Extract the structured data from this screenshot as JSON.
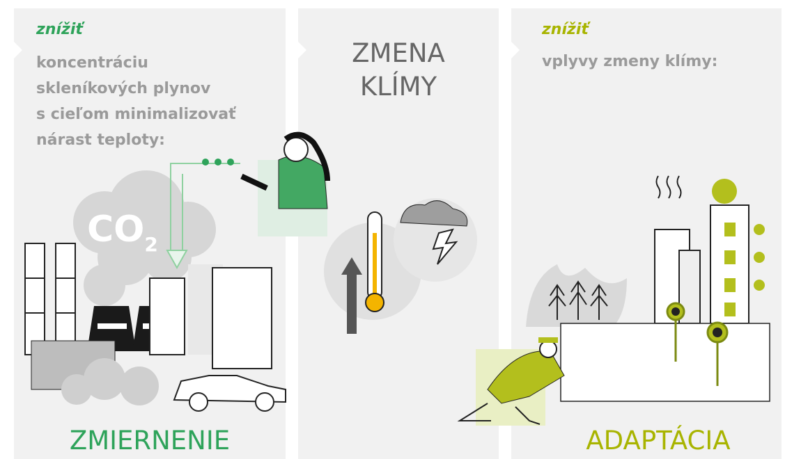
{
  "left": {
    "heading": "znížiť",
    "lines": [
      "koncentráciu",
      "skleníkových plynov",
      "s cieľom minimalizovať",
      "nárast teploty:"
    ],
    "label": "ZMIERNENIE",
    "co2": "CO",
    "co2_sub": "2"
  },
  "middle": {
    "lines": [
      "ZMENA",
      "KLÍMY"
    ]
  },
  "right": {
    "heading": "znížiť",
    "lines": [
      "vplyvy zmeny klímy:"
    ],
    "label": "ADAPTÁCIA"
  }
}
